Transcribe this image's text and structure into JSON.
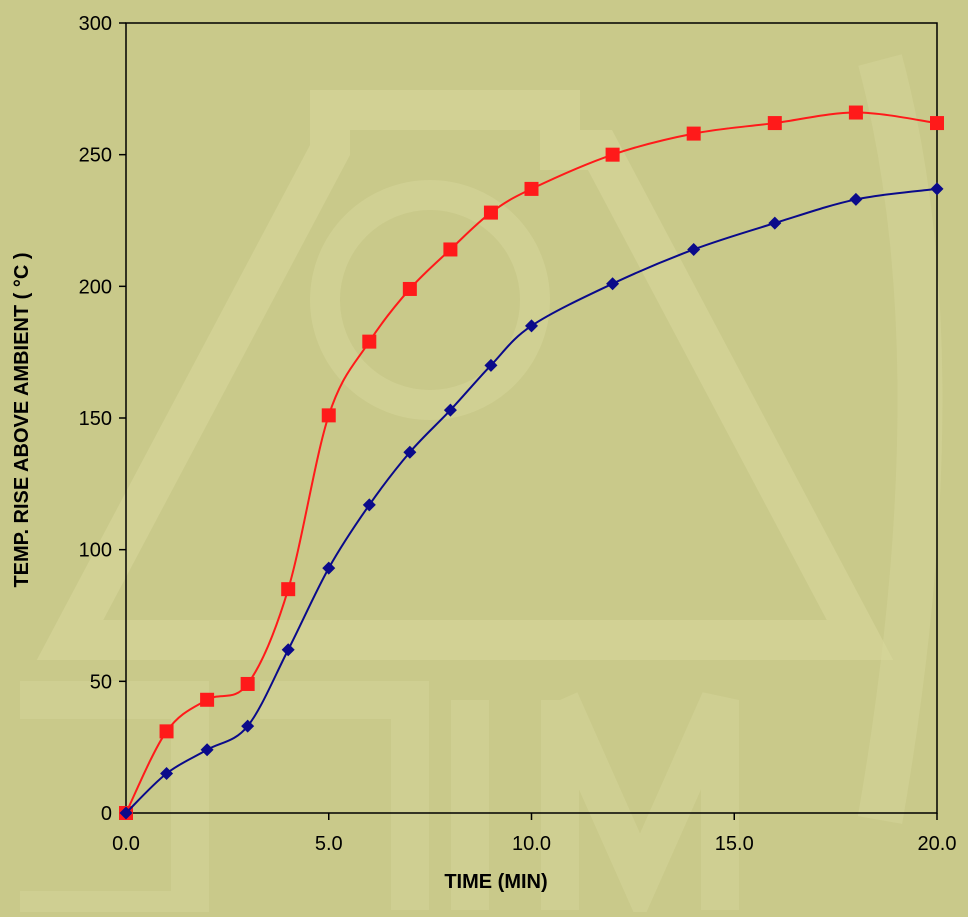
{
  "colors": {
    "background": "#c9c98a",
    "watermark": "#d8d79c",
    "axis": "#000000",
    "series_red": "#ff1a1a",
    "series_blue": "#0a0a8a"
  },
  "chart_data": {
    "type": "line",
    "title": "",
    "xlabel": "TIME (MIN)",
    "ylabel": "TEMP. RISE ABOVE AMBIENT ( °C )",
    "xlim": [
      0,
      20
    ],
    "ylim": [
      0,
      300
    ],
    "x_ticks": [
      "0.0",
      "5.0",
      "10.0",
      "15.0",
      "20.0"
    ],
    "y_ticks": [
      "0",
      "50",
      "100",
      "150",
      "200",
      "250",
      "300"
    ],
    "grid": false,
    "legend": "none",
    "smooth": true,
    "series": [
      {
        "marker": "square",
        "color": "#ff1a1a",
        "x": [
          0,
          1,
          2,
          3,
          4,
          5,
          6,
          7,
          8,
          9,
          10,
          12,
          14,
          16,
          18,
          20
        ],
        "y": [
          0,
          31,
          43,
          49,
          85,
          151,
          179,
          199,
          214,
          228,
          237,
          250,
          258,
          262,
          266,
          262
        ]
      },
      {
        "marker": "diamond",
        "color": "#0a0a8a",
        "x": [
          0,
          1,
          2,
          3,
          4,
          5,
          6,
          7,
          8,
          9,
          10,
          12,
          14,
          16,
          18,
          20
        ],
        "y": [
          0,
          15,
          24,
          33,
          62,
          93,
          117,
          137,
          153,
          170,
          185,
          201,
          214,
          224,
          233,
          237
        ]
      }
    ]
  }
}
